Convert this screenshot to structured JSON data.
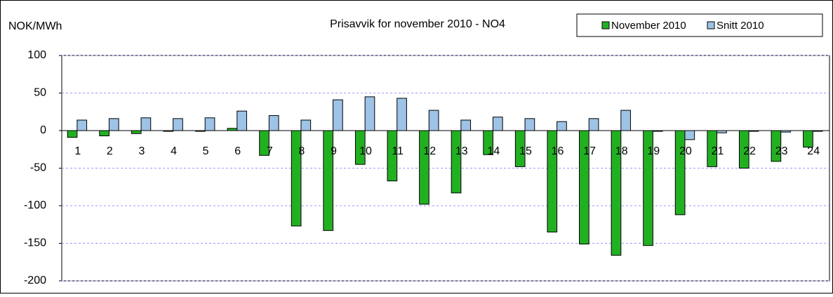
{
  "chart_data": {
    "type": "bar",
    "title": "Prisavvik for november 2010 - NO4",
    "y_label": "NOK/MWh",
    "categories": [
      "1",
      "2",
      "3",
      "4",
      "5",
      "6",
      "7",
      "8",
      "9",
      "10",
      "11",
      "12",
      "13",
      "14",
      "15",
      "16",
      "17",
      "18",
      "19",
      "20",
      "21",
      "22",
      "23",
      "24"
    ],
    "series": [
      {
        "name": "November 2010",
        "color": "#22b022",
        "values": [
          -9,
          -7,
          -4,
          -1,
          -1,
          3,
          -33,
          -127,
          -133,
          -45,
          -67,
          -98,
          -83,
          -32,
          -48,
          -135,
          -151,
          -166,
          -153,
          -112,
          -48,
          -50,
          -41,
          -22
        ]
      },
      {
        "name": "Snitt 2010",
        "color": "#9dc3e6",
        "values": [
          14,
          16,
          17,
          16,
          17,
          26,
          20,
          14,
          41,
          45,
          43,
          27,
          14,
          18,
          16,
          12,
          16,
          27,
          -1,
          -12,
          -3,
          -1,
          -2,
          -1
        ]
      }
    ],
    "ylim": [
      -200,
      100
    ],
    "yticks": [
      -200,
      -150,
      -100,
      -50,
      0,
      50,
      100
    ],
    "grid": true,
    "legend": "top-right"
  }
}
